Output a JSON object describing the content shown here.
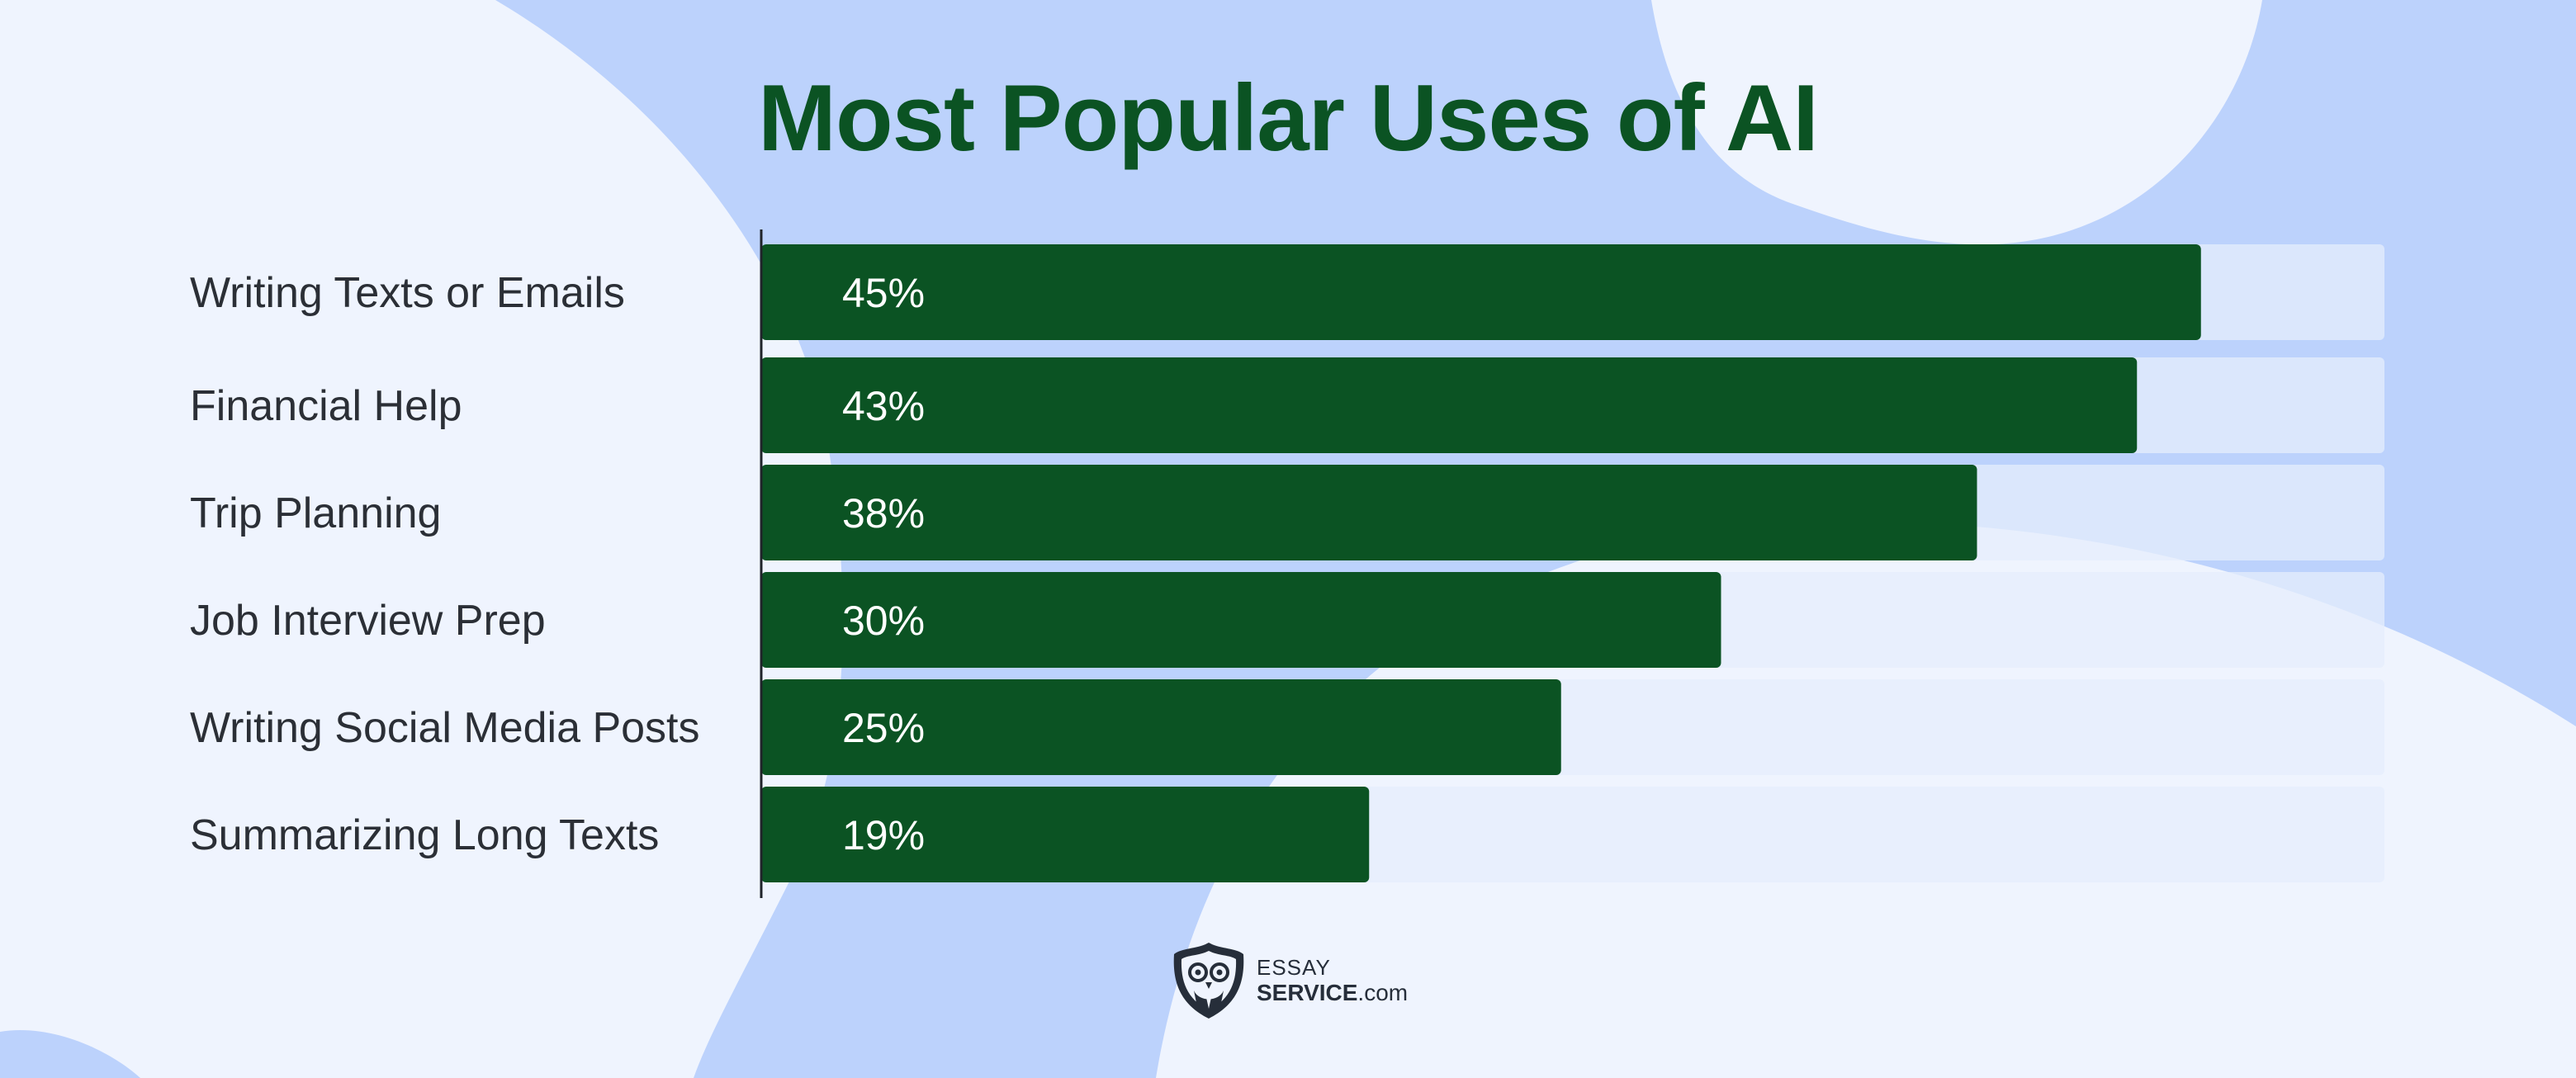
{
  "chart_data": {
    "type": "bar",
    "orientation": "horizontal",
    "title": "Most Popular Uses of AI",
    "categories": [
      "Writing Texts or Emails",
      "Financial Help",
      "Trip Planning",
      "Job Interview Prep",
      "Writing Social Media Posts",
      "Summarizing Long Texts"
    ],
    "values": [
      45,
      43,
      38,
      30,
      25,
      19
    ],
    "value_labels": [
      "45%",
      "43%",
      "38%",
      "30%",
      "25%",
      "19%"
    ],
    "xlabel": "",
    "ylabel": "",
    "xlim": [
      0,
      48
    ],
    "grid": false,
    "legend": "none",
    "colors": {
      "bar": "#0b5323",
      "track": "#e6eefc",
      "label": "#2b2f36",
      "value_label": "#ffffff",
      "title": "#0b5323"
    }
  },
  "logo": {
    "top": "ESSAY",
    "bold": "SERVICE",
    "suffix": ".com",
    "icon": "owl-shield-icon"
  },
  "background": {
    "base": "#bcd2fc",
    "blob": "#eff4fe"
  }
}
